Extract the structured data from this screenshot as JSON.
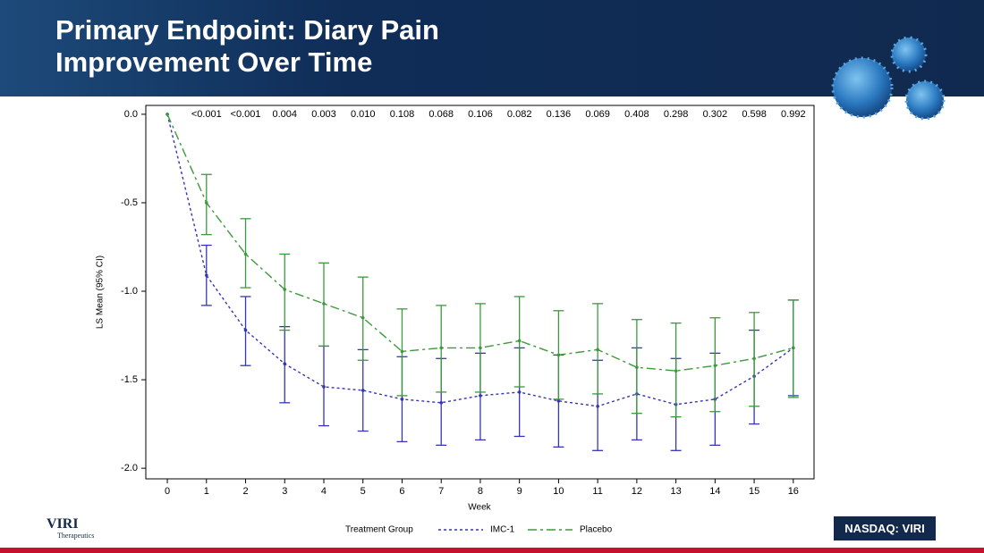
{
  "header": {
    "title": "Primary Endpoint: Diary Pain Improvement Over Time"
  },
  "chart_data": {
    "type": "line",
    "x_label": "Week",
    "y_label": "LS Mean (95% CI)",
    "x": [
      0,
      1,
      2,
      3,
      4,
      5,
      6,
      7,
      8,
      9,
      10,
      11,
      12,
      13,
      14,
      15,
      16
    ],
    "legend_title": "Treatment Group",
    "series": [
      {
        "name": "IMC-1",
        "color": "#3535b8",
        "dash": "3,3",
        "values": [
          0,
          -0.91,
          -1.22,
          -1.41,
          -1.54,
          -1.56,
          -1.61,
          -1.63,
          -1.59,
          -1.57,
          -1.62,
          -1.65,
          -1.58,
          -1.64,
          -1.61,
          -1.48,
          -1.32
        ],
        "upper": [
          null,
          -0.74,
          -1.03,
          -1.2,
          -1.31,
          -1.33,
          -1.37,
          -1.38,
          -1.35,
          -1.32,
          -1.36,
          -1.39,
          -1.32,
          -1.38,
          -1.35,
          -1.22,
          -1.05
        ],
        "lower": [
          null,
          -1.08,
          -1.42,
          -1.63,
          -1.76,
          -1.79,
          -1.85,
          -1.87,
          -1.84,
          -1.82,
          -1.88,
          -1.9,
          -1.84,
          -1.9,
          -1.87,
          -1.75,
          -1.59
        ]
      },
      {
        "name": "Placebo",
        "color": "#3c9a3c",
        "dash": "10,4,3,4",
        "values": [
          0,
          -0.5,
          -0.79,
          -0.99,
          -1.07,
          -1.15,
          -1.34,
          -1.32,
          -1.32,
          -1.28,
          -1.36,
          -1.33,
          -1.43,
          -1.45,
          -1.42,
          -1.38,
          -1.32
        ],
        "upper": [
          null,
          -0.34,
          -0.59,
          -0.79,
          -0.84,
          -0.92,
          -1.1,
          -1.08,
          -1.07,
          -1.03,
          -1.11,
          -1.07,
          -1.16,
          -1.18,
          -1.15,
          -1.12,
          -1.05
        ],
        "lower": [
          null,
          -0.68,
          -0.98,
          -1.22,
          -1.31,
          -1.39,
          -1.59,
          -1.57,
          -1.57,
          -1.54,
          -1.61,
          -1.58,
          -1.69,
          -1.71,
          -1.68,
          -1.65,
          -1.6
        ]
      }
    ],
    "annotations": [
      {
        "x": 1,
        "text": "<0.001"
      },
      {
        "x": 2,
        "text": "<0.001"
      },
      {
        "x": 3,
        "text": "0.004"
      },
      {
        "x": 4,
        "text": "0.003"
      },
      {
        "x": 5,
        "text": "0.010"
      },
      {
        "x": 6,
        "text": "0.108"
      },
      {
        "x": 7,
        "text": "0.068"
      },
      {
        "x": 8,
        "text": "0.106"
      },
      {
        "x": 9,
        "text": "0.082"
      },
      {
        "x": 10,
        "text": "0.136"
      },
      {
        "x": 11,
        "text": "0.069"
      },
      {
        "x": 12,
        "text": "0.408"
      },
      {
        "x": 13,
        "text": "0.298"
      },
      {
        "x": 14,
        "text": "0.302"
      },
      {
        "x": 15,
        "text": "0.598"
      },
      {
        "x": 16,
        "text": "0.992"
      }
    ],
    "xlim": [
      -0.55,
      16.53
    ],
    "xticks": [
      0,
      1,
      2,
      3,
      4,
      5,
      6,
      7,
      8,
      9,
      10,
      11,
      12,
      13,
      14,
      15,
      16
    ],
    "ylim": [
      -2.06,
      0.05
    ],
    "yticks": [
      {
        "value": 0,
        "label": "0.0"
      },
      {
        "value": -0.5,
        "label": "-0.5"
      },
      {
        "value": -1,
        "label": "-1.0"
      },
      {
        "value": -1.5,
        "label": "-1.5"
      },
      {
        "value": -2,
        "label": "-2.0"
      }
    ]
  },
  "footer": {
    "logo": "VIRI",
    "logo_sub": "Therapeutics",
    "ticker": "NASDAQ: VIRI"
  }
}
